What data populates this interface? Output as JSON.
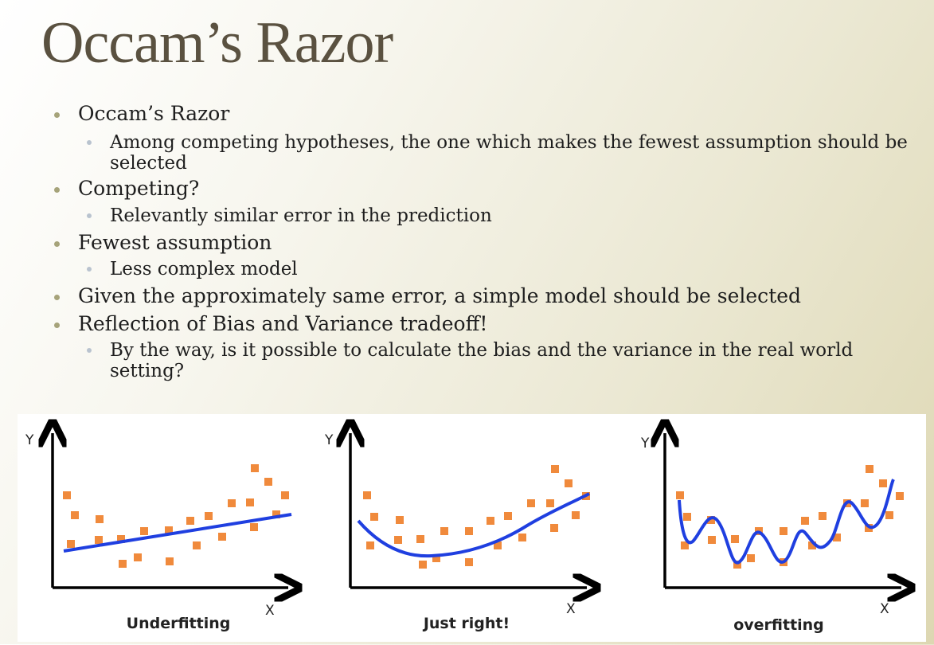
{
  "slide": {
    "title": "Occam’s Razor",
    "bullets": [
      {
        "level": 1,
        "text": "Occam’s Razor"
      },
      {
        "level": 2,
        "text": "Among competing hypotheses, the one which makes the fewest assumption should be selected"
      },
      {
        "level": 1,
        "text": "Competing?"
      },
      {
        "level": 2,
        "text": "Relevantly similar error in the prediction"
      },
      {
        "level": 1,
        "text": "Fewest assumption"
      },
      {
        "level": 2,
        "text": "Less complex model"
      },
      {
        "level": 1,
        "text": "Given the approximately same error, a simple model should be selected"
      },
      {
        "level": 1,
        "text": "Reflection of Bias and Variance tradeoff!"
      },
      {
        "level": 2,
        "text": "By the way, is it possible to calculate the bias and the variance in the real world setting?"
      }
    ]
  },
  "figure": {
    "panels": [
      {
        "caption": "Underfitting",
        "x_label": "X",
        "y_label": "Y"
      },
      {
        "caption": "Just right!",
        "x_label": "X",
        "y_label": "Y"
      },
      {
        "caption": "overfitting",
        "x_label": "X",
        "y_label": "Y"
      }
    ],
    "point_color": "#f08a3c",
    "curve_color": "#1f3fe0"
  }
}
